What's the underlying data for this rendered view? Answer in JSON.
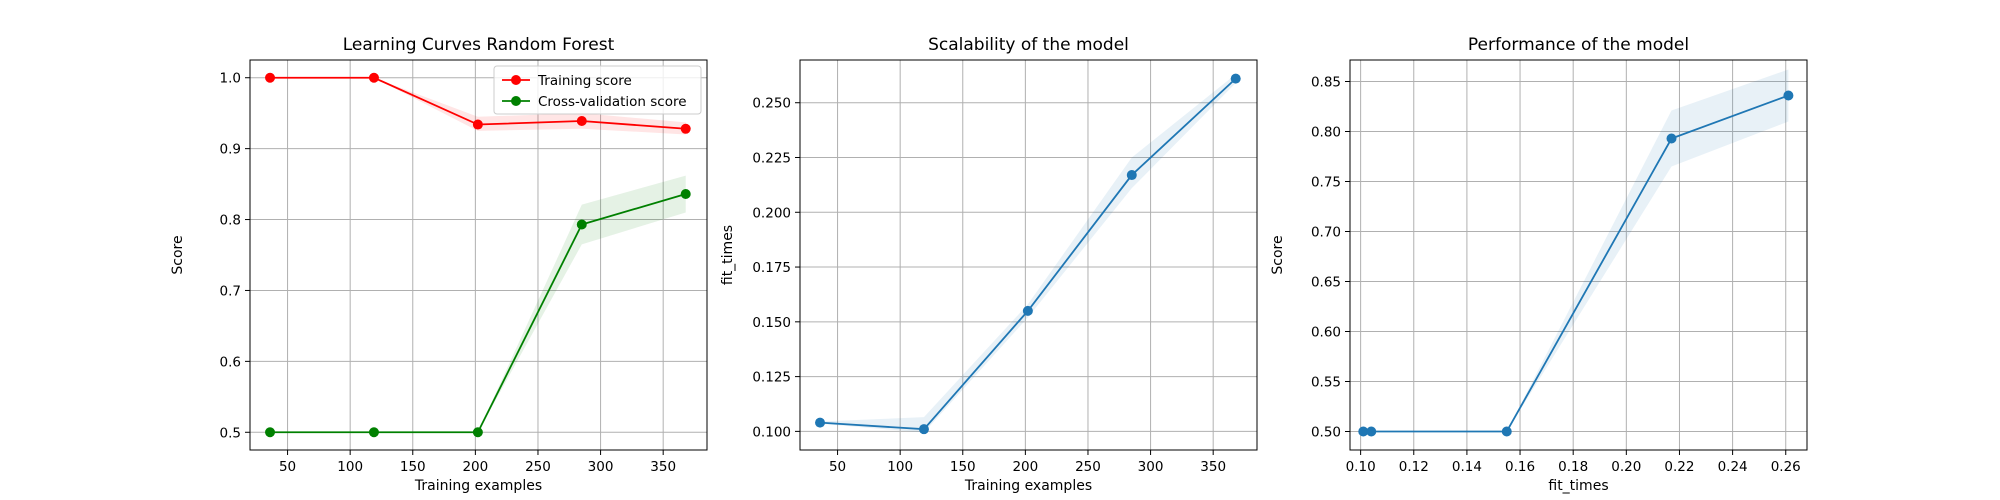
{
  "chart_data": [
    {
      "type": "line",
      "title": "Learning Curves Random Forest",
      "xlabel": "Training examples",
      "ylabel": "Score",
      "xlim": [
        20,
        385
      ],
      "ylim": [
        0.475,
        1.025
      ],
      "xticks": [
        50,
        100,
        150,
        200,
        250,
        300,
        350
      ],
      "yticks": [
        0.5,
        0.6,
        0.7,
        0.8,
        0.9,
        1.0
      ],
      "ytick_labels": [
        "0.5",
        "0.6",
        "0.7",
        "0.8",
        "0.9",
        "1.0"
      ],
      "grid": true,
      "legend_position": "top-right",
      "x": [
        36,
        119,
        202,
        285,
        368
      ],
      "series": [
        {
          "name": "Training score",
          "color": "#ff0000",
          "values": [
            1.0,
            1.0,
            0.934,
            0.939,
            0.928
          ],
          "band_lower": [
            1.0,
            1.0,
            0.925,
            0.928,
            0.92
          ],
          "band_upper": [
            1.0,
            1.0,
            0.945,
            0.95,
            0.937
          ]
        },
        {
          "name": "Cross-validation score",
          "color": "#008000",
          "values": [
            0.5,
            0.5,
            0.5,
            0.793,
            0.836
          ],
          "band_lower": [
            0.5,
            0.5,
            0.5,
            0.765,
            0.81
          ],
          "band_upper": [
            0.5,
            0.5,
            0.5,
            0.821,
            0.862
          ]
        }
      ]
    },
    {
      "type": "line",
      "title": "Scalability of the model",
      "xlabel": "Training examples",
      "ylabel": "fit_times",
      "xlim": [
        20,
        385
      ],
      "ylim": [
        0.0915,
        0.2695
      ],
      "xticks": [
        50,
        100,
        150,
        200,
        250,
        300,
        350
      ],
      "yticks": [
        0.1,
        0.125,
        0.15,
        0.175,
        0.2,
        0.225,
        0.25
      ],
      "ytick_labels": [
        "0.100",
        "0.125",
        "0.150",
        "0.175",
        "0.200",
        "0.225",
        "0.250"
      ],
      "grid": true,
      "x": [
        36,
        119,
        202,
        285,
        368
      ],
      "series": [
        {
          "color": "#1f77b4",
          "values": [
            0.104,
            0.101,
            0.155,
            0.217,
            0.261
          ],
          "band_lower": [
            0.1035,
            0.0995,
            0.152,
            0.211,
            0.259
          ],
          "band_upper": [
            0.1045,
            0.1065,
            0.158,
            0.225,
            0.263
          ]
        }
      ]
    },
    {
      "type": "line",
      "title": "Performance of the model",
      "xlabel": "fit_times",
      "ylabel": "Score",
      "xlim": [
        0.096,
        0.268
      ],
      "ylim": [
        0.4815,
        0.8715
      ],
      "xticks": [
        0.1,
        0.12,
        0.14,
        0.16,
        0.18,
        0.2,
        0.22,
        0.24,
        0.26
      ],
      "xtick_labels": [
        "0.10",
        "0.12",
        "0.14",
        "0.16",
        "0.18",
        "0.20",
        "0.22",
        "0.24",
        "0.26"
      ],
      "yticks": [
        0.5,
        0.55,
        0.6,
        0.65,
        0.7,
        0.75,
        0.8,
        0.85
      ],
      "ytick_labels": [
        "0.50",
        "0.55",
        "0.60",
        "0.65",
        "0.70",
        "0.75",
        "0.80",
        "0.85"
      ],
      "grid": true,
      "x": [
        0.101,
        0.104,
        0.155,
        0.217,
        0.261
      ],
      "series": [
        {
          "color": "#1f77b4",
          "values": [
            0.5,
            0.5,
            0.5,
            0.793,
            0.836
          ],
          "band_lower": [
            0.5,
            0.5,
            0.5,
            0.765,
            0.81
          ],
          "band_upper": [
            0.5,
            0.5,
            0.5,
            0.821,
            0.862
          ]
        }
      ]
    }
  ]
}
